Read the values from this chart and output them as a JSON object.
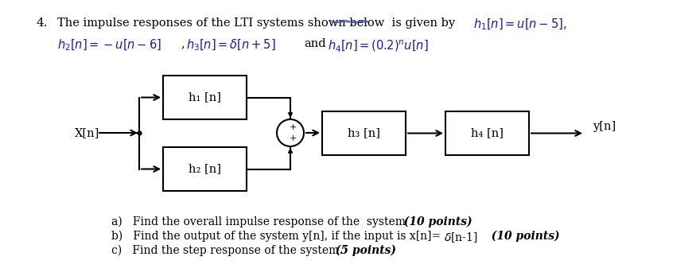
{
  "bg_color": "#ffffff",
  "block_h1_label": "h₁ [n]",
  "block_h2_label": "h₂ [n]",
  "block_h3_label": "h₃ [n]",
  "block_h4_label": "h₄ [n]",
  "input_label": "X[n]",
  "output_label": "y[n]",
  "text_color_blue": "#1a1aaa",
  "text_color_black": "#000000",
  "line1_prefix": "4.   The impulse responses of the LTI systems shown below  is given by  ",
  "line1_math": "$h_1[n] = u[n-5],$",
  "line2_math1": "$h_2[n]=-u[n-6]$",
  "line2_comma": ",",
  "line2_math2": "$h_3[n]=\\delta[n+5]$",
  "line2_and": "and",
  "line2_math3": "$h_4[n]=(0.2)^n u[n]$",
  "qa_plain": "a)   Find the overall impulse response of the  system",
  "qa_bold": "  (10 points)",
  "qb_plain": "b)   Find the output of the system y[n], if the input is x[n]=",
  "qb_delta": "$\\delta$[n-1]",
  "qb_bold": "  (10 points)",
  "qc_plain": "c)   Find the step response of the system.",
  "qc_bold": "  (5 points)"
}
